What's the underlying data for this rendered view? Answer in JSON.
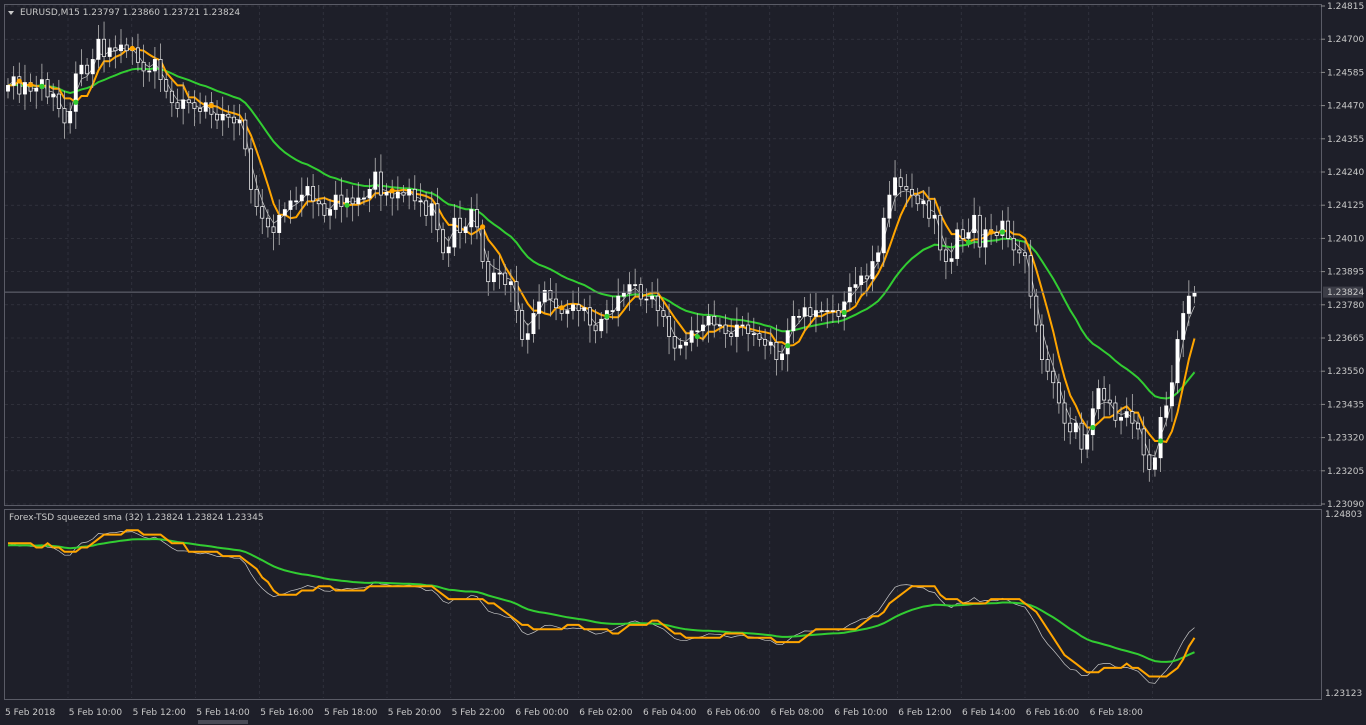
{
  "window": {
    "symbol_line": "EURUSD,M15  1.23797 1.23860 1.23721 1.23824"
  },
  "indicator": {
    "title": "Forex-TSD squeezed sma (32) 1.23824 1.23824 1.23345"
  },
  "colors": {
    "background": "#1e1f29",
    "grid": "#3a3b46",
    "bull": "#ffffff",
    "bear": "#ffffff",
    "fast_line": "#ffa500",
    "slow_line": "#32cd32",
    "raw_line": "#c8c8c8",
    "marker_orange": "#ffa500",
    "marker_green": "#32cd32"
  },
  "chart_data": [
    {
      "type": "candlestick",
      "title": "EURUSD,M15",
      "last_price": "1.23824",
      "ylim": [
        1.2309,
        1.24815
      ],
      "price_ticks": [
        "1.24815",
        "1.24700",
        "1.24585",
        "1.24470",
        "1.24355",
        "1.24240",
        "1.24125",
        "1.24010",
        "1.23895",
        "1.23780",
        "1.23665",
        "1.23550",
        "1.23435",
        "1.23320",
        "1.23205",
        "1.23090"
      ],
      "time_ticks": [
        "5 Feb 2018",
        "5 Feb 10:00",
        "5 Feb 12:00",
        "5 Feb 14:00",
        "5 Feb 16:00",
        "5 Feb 18:00",
        "5 Feb 20:00",
        "5 Feb 22:00",
        "6 Feb 00:00",
        "6 Feb 02:00",
        "6 Feb 04:00",
        "6 Feb 06:00",
        "6 Feb 08:00",
        "6 Feb 10:00",
        "6 Feb 12:00",
        "6 Feb 14:00",
        "6 Feb 16:00",
        "6 Feb 18:00"
      ],
      "bars_per_hour": 4,
      "closes": [
        1.2454,
        1.2457,
        1.2451,
        1.2455,
        1.2452,
        1.2453,
        1.2456,
        1.245,
        1.2451,
        1.2446,
        1.2441,
        1.2445,
        1.2458,
        1.2461,
        1.2458,
        1.2463,
        1.247,
        1.2464,
        1.2467,
        1.2466,
        1.2468,
        1.2466,
        1.2467,
        1.2462,
        1.2459,
        1.2459,
        1.2463,
        1.2456,
        1.2452,
        1.2448,
        1.2446,
        1.2449,
        1.2448,
        1.2446,
        1.2445,
        1.2448,
        1.2444,
        1.2442,
        1.2444,
        1.2443,
        1.2441,
        1.2442,
        1.2432,
        1.2418,
        1.2412,
        1.2408,
        1.2405,
        1.2403,
        1.2409,
        1.2411,
        1.2414,
        1.2414,
        1.2416,
        1.2419,
        1.2414,
        1.2413,
        1.2409,
        1.2411,
        1.2416,
        1.2412,
        1.2415,
        1.2413,
        1.2415,
        1.2415,
        1.2418,
        1.2424,
        1.2416,
        1.2417,
        1.2415,
        1.2417,
        1.2416,
        1.2418,
        1.2414,
        1.2414,
        1.2409,
        1.2413,
        1.2404,
        1.2396,
        1.2398,
        1.2408,
        1.2403,
        1.2405,
        1.2411,
        1.2405,
        1.2393,
        1.2386,
        1.2389,
        1.2389,
        1.2385,
        1.2386,
        1.2376,
        1.2366,
        1.2368,
        1.2375,
        1.2379,
        1.2383,
        1.238,
        1.2377,
        1.2375,
        1.2376,
        1.2378,
        1.2376,
        1.2377,
        1.2371,
        1.2369,
        1.2373,
        1.2376,
        1.2376,
        1.2381,
        1.2382,
        1.2385,
        1.2385,
        1.238,
        1.238,
        1.2381,
        1.2376,
        1.2374,
        1.2367,
        1.2363,
        1.2364,
        1.2365,
        1.2369,
        1.2369,
        1.2371,
        1.2374,
        1.2371,
        1.2371,
        1.2368,
        1.2367,
        1.2371,
        1.2371,
        1.2368,
        1.2368,
        1.2366,
        1.2364,
        1.2365,
        1.2359,
        1.2361,
        1.2369,
        1.2374,
        1.2374,
        1.2377,
        1.2374,
        1.2376,
        1.2376,
        1.2376,
        1.2376,
        1.2374,
        1.2379,
        1.2384,
        1.2385,
        1.2388,
        1.2387,
        1.2393,
        1.2396,
        1.2408,
        1.2416,
        1.2422,
        1.2419,
        1.2418,
        1.2416,
        1.2413,
        1.2414,
        1.2408,
        1.2409,
        1.2397,
        1.2393,
        1.2394,
        1.2404,
        1.2401,
        1.2403,
        1.2409,
        1.2398,
        1.2404,
        1.2403,
        1.2402,
        1.2407,
        1.2401,
        1.2397,
        1.2396,
        1.2395,
        1.2381,
        1.2371,
        1.2359,
        1.2355,
        1.2351,
        1.2344,
        1.2337,
        1.2334,
        1.2337,
        1.2328,
        1.2333,
        1.2342,
        1.2349,
        1.2345,
        1.2344,
        1.2338,
        1.2339,
        1.2341,
        1.2337,
        1.2335,
        1.2326,
        1.2321,
        1.2325,
        1.2339,
        1.2343,
        1.2351,
        1.2366,
        1.2375,
        1.2381,
        1.2382
      ]
    },
    {
      "type": "line",
      "title": "Forex-TSD squeezed sma (32)",
      "values_shown": [
        "1.23824",
        "1.23824",
        "1.23345"
      ],
      "price_ticks": [
        "1.24803",
        "1.23123"
      ]
    }
  ]
}
